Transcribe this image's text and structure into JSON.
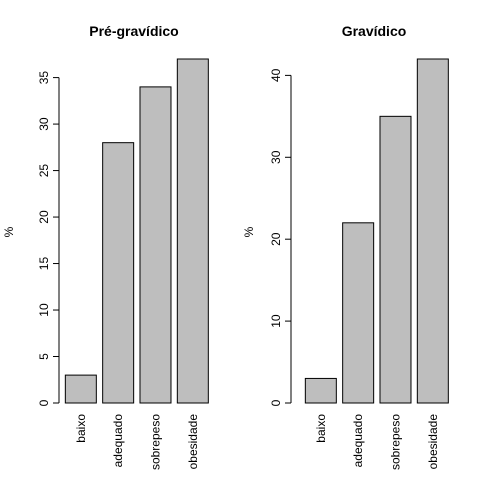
{
  "chart_data": [
    {
      "type": "bar",
      "title": "Pré-gravídico",
      "ylabel": "%",
      "xlabel": "",
      "categories": [
        "baixo",
        "adequado",
        "sobrepeso",
        "obesidade"
      ],
      "values": [
        3,
        28,
        34,
        37
      ],
      "ylim": [
        0,
        37
      ],
      "yticks": [
        0,
        5,
        10,
        15,
        20,
        25,
        30,
        35
      ],
      "bar_color": "#bebebe",
      "grid": false,
      "legend": "none"
    },
    {
      "type": "bar",
      "title": "Gravídico",
      "ylabel": "%",
      "xlabel": "",
      "categories": [
        "baixo",
        "adequado",
        "sobrepeso",
        "obesidade"
      ],
      "values": [
        3,
        22,
        35,
        42
      ],
      "ylim": [
        0,
        42
      ],
      "yticks": [
        0,
        10,
        20,
        30,
        40
      ],
      "bar_color": "#bebebe",
      "grid": false,
      "legend": "none"
    }
  ]
}
